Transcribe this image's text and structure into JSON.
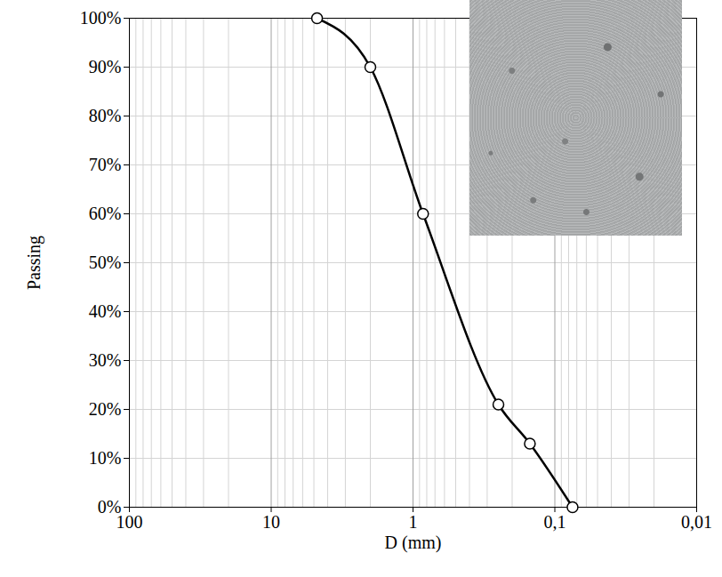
{
  "chart_data": {
    "type": "line",
    "x": [
      4.75,
      2,
      0.85,
      0.25,
      0.15,
      0.075
    ],
    "values": [
      100,
      90,
      60,
      21,
      13,
      0
    ],
    "color": "#000000",
    "marker": "circle",
    "line_style": "solid",
    "xlabel": "D (mm)",
    "ylabel": "Passing",
    "log": "x",
    "xlim": [
      100,
      0.01
    ],
    "xticks": [
      100,
      10,
      1,
      {
        "value": 0.1,
        "label": "0,1"
      },
      {
        "value": 0.01,
        "label": "0,01"
      }
    ],
    "ylim": [
      0,
      100
    ],
    "yticks": [
      {
        "value": 0,
        "label": "0%"
      },
      {
        "value": 10,
        "label": "10%"
      },
      {
        "value": 20,
        "label": "20%"
      },
      {
        "value": 30,
        "label": "30%"
      },
      {
        "value": 40,
        "label": "40%"
      },
      {
        "value": 50,
        "label": "50%"
      },
      {
        "value": 60,
        "label": "60%"
      },
      {
        "value": 70,
        "label": "70%"
      },
      {
        "value": 80,
        "label": "80%"
      },
      {
        "value": 90,
        "label": "90%"
      },
      {
        "value": 100,
        "label": "100%"
      }
    ],
    "grid": true
  }
}
